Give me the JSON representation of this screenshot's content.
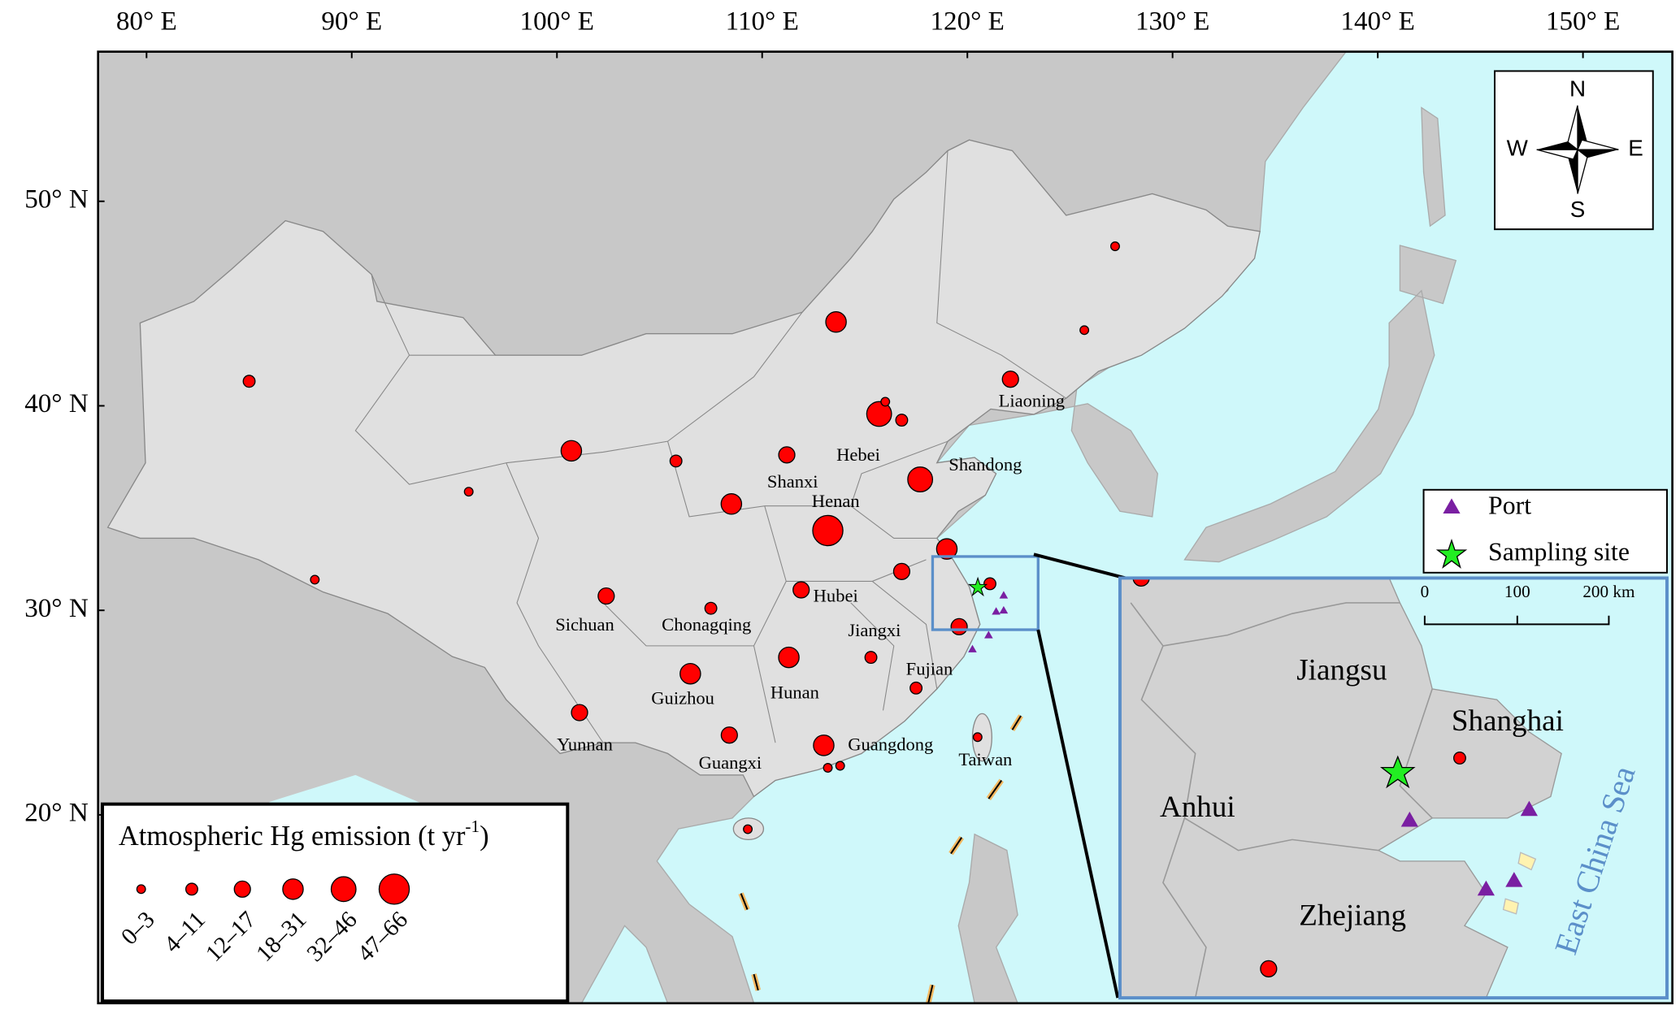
{
  "map": {
    "lon_ticks": [
      {
        "value": 80,
        "label": "80° E"
      },
      {
        "value": 90,
        "label": "90° E"
      },
      {
        "value": 100,
        "label": "100° E"
      },
      {
        "value": 110,
        "label": "110° E"
      },
      {
        "value": 120,
        "label": "120° E"
      },
      {
        "value": 130,
        "label": "130° E"
      },
      {
        "value": 140,
        "label": "140° E"
      },
      {
        "value": 150,
        "label": "150° E"
      }
    ],
    "lat_ticks": [
      {
        "value": 50,
        "label": "50° N"
      },
      {
        "value": 40,
        "label": "40° N"
      },
      {
        "value": 30,
        "label": "30° N"
      },
      {
        "value": 20,
        "label": "20° N"
      }
    ],
    "region_labels": [
      "Liaoning",
      "Hebei",
      "Shandong",
      "Shanxi",
      "Henan",
      "Hubei",
      "Sichuan",
      "Chonagqing",
      "Jiangxi",
      "Fujian",
      "Hunan",
      "Guizhou",
      "Yunnan",
      "Guangxi",
      "Guangdong",
      "Taiwan"
    ],
    "compass": {
      "n": "N",
      "s": "S",
      "e": "E",
      "w": "W"
    },
    "emission_legend": {
      "title": "Atmospheric Hg emission (t yr",
      "title_sup": "-1",
      "title_end": ")",
      "classes": [
        "0–3",
        "4–11",
        "12–17",
        "18–31",
        "32–46",
        "47–66"
      ],
      "color": "#ff0000"
    },
    "marker_legend": {
      "port": "Port",
      "site": "Sampling site"
    },
    "emission_points": [
      {
        "lon": 113.6,
        "lat": 44.1,
        "class": 3
      },
      {
        "lon": 127.2,
        "lat": 47.8,
        "class": 0
      },
      {
        "lon": 125.7,
        "lat": 43.7,
        "class": 0
      },
      {
        "lon": 122.1,
        "lat": 41.3,
        "class": 2
      },
      {
        "lon": 85.0,
        "lat": 41.2,
        "class": 1
      },
      {
        "lon": 100.7,
        "lat": 37.8,
        "class": 3
      },
      {
        "lon": 105.8,
        "lat": 37.3,
        "class": 1
      },
      {
        "lon": 95.7,
        "lat": 35.8,
        "class": 0
      },
      {
        "lon": 88.2,
        "lat": 31.5,
        "class": 0
      },
      {
        "lon": 115.7,
        "lat": 39.6,
        "class": 4
      },
      {
        "lon": 116.0,
        "lat": 40.2,
        "class": 0
      },
      {
        "lon": 116.8,
        "lat": 39.3,
        "class": 1
      },
      {
        "lon": 111.2,
        "lat": 37.6,
        "class": 2
      },
      {
        "lon": 117.7,
        "lat": 36.4,
        "class": 4
      },
      {
        "lon": 108.5,
        "lat": 35.2,
        "class": 3
      },
      {
        "lon": 113.2,
        "lat": 33.9,
        "class": 5
      },
      {
        "lon": 119.0,
        "lat": 33.0,
        "class": 3
      },
      {
        "lon": 116.8,
        "lat": 31.9,
        "class": 2
      },
      {
        "lon": 111.9,
        "lat": 31.0,
        "class": 2
      },
      {
        "lon": 102.4,
        "lat": 30.7,
        "class": 2
      },
      {
        "lon": 107.5,
        "lat": 30.1,
        "class": 1
      },
      {
        "lon": 121.1,
        "lat": 31.3,
        "class": 1
      },
      {
        "lon": 119.6,
        "lat": 29.2,
        "class": 2
      },
      {
        "lon": 111.3,
        "lat": 27.7,
        "class": 3
      },
      {
        "lon": 115.3,
        "lat": 27.7,
        "class": 1
      },
      {
        "lon": 106.5,
        "lat": 26.9,
        "class": 3
      },
      {
        "lon": 117.5,
        "lat": 26.2,
        "class": 1
      },
      {
        "lon": 101.1,
        "lat": 25.0,
        "class": 2
      },
      {
        "lon": 108.4,
        "lat": 23.9,
        "class": 2
      },
      {
        "lon": 113.0,
        "lat": 23.4,
        "class": 3
      },
      {
        "lon": 120.5,
        "lat": 23.8,
        "class": 0
      },
      {
        "lon": 113.2,
        "lat": 22.3,
        "class": 0
      },
      {
        "lon": 113.8,
        "lat": 22.4,
        "class": 0
      },
      {
        "lon": 109.3,
        "lat": 19.3,
        "class": 0
      }
    ],
    "inset": {
      "labels": [
        "Jiangsu",
        "Shanghai",
        "Anhui",
        "Zhejiang"
      ],
      "sea": "East China Sea",
      "scale_labels": [
        "0",
        "100",
        "200 km"
      ],
      "emission_points": [
        {
          "lon": 118.5,
          "lat": 32.6,
          "class": 2
        },
        {
          "lon": 121.5,
          "lat": 31.08,
          "class": 1
        },
        {
          "lon": 119.7,
          "lat": 29.3,
          "class": 2
        }
      ]
    }
  }
}
